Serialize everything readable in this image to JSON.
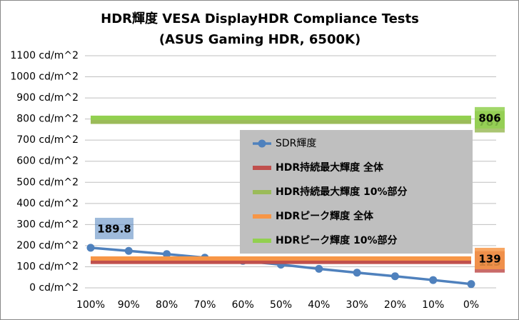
{
  "chart_data": {
    "type": "line",
    "title": "HDR輝度 VESA DisplayHDR Compliance Tests",
    "subtitle": "(ASUS Gaming HDR, 6500K)",
    "categories": [
      "100%",
      "90%",
      "80%",
      "70%",
      "60%",
      "50%",
      "40%",
      "30%",
      "20%",
      "10%",
      "0%"
    ],
    "series": [
      {
        "name": "SDR輝度",
        "color": "#4f81bd",
        "marker": true,
        "label_index": 0,
        "values": [
          189.8,
          175,
          160,
          143,
          128,
          110,
          90,
          72,
          55,
          37,
          18
        ]
      },
      {
        "name": "HDR持続最大輝度 全体",
        "color": "#c0504d",
        "marker": false,
        "label_index": 10,
        "values": [
          123,
          123,
          123,
          123,
          123,
          123,
          123,
          123,
          123,
          123,
          123
        ]
      },
      {
        "name": "HDR持続最大輝度 10%部分",
        "color": "#9bbb59",
        "marker": false,
        "label_index": 10,
        "values": [
          787,
          787,
          787,
          787,
          787,
          787,
          787,
          787,
          787,
          787,
          787
        ]
      },
      {
        "name": "HDRピーク輝度 全体",
        "color": "#f79646",
        "marker": false,
        "label_index": 10,
        "values": [
          139,
          139,
          139,
          139,
          139,
          139,
          139,
          139,
          139,
          139,
          139
        ]
      },
      {
        "name": "HDRピーク輝度 10%部分",
        "color": "#92d050",
        "marker": false,
        "label_index": 10,
        "values": [
          806,
          806,
          806,
          806,
          806,
          806,
          806,
          806,
          806,
          806,
          806
        ]
      }
    ],
    "ylim": [
      0,
      1100
    ],
    "yticks": [
      {
        "value": 0,
        "label": "0 cd/m^2"
      },
      {
        "value": 100,
        "label": "100 cd/m^2"
      },
      {
        "value": 200,
        "label": "200 cd/m^2"
      },
      {
        "value": 300,
        "label": "300 cd/m^2"
      },
      {
        "value": 400,
        "label": "400 cd/m^2"
      },
      {
        "value": 500,
        "label": "500 cd/m^2"
      },
      {
        "value": 600,
        "label": "600 cd/m^2"
      },
      {
        "value": 700,
        "label": "700 cd/m^2"
      },
      {
        "value": 800,
        "label": "800 cd/m^2"
      },
      {
        "value": 900,
        "label": "900 cd/m^2"
      },
      {
        "value": 1000,
        "label": "1000 cd/m^2"
      },
      {
        "value": 1100,
        "label": "1100 cd/m^2"
      }
    ],
    "grid": true,
    "legend": "center-right"
  }
}
